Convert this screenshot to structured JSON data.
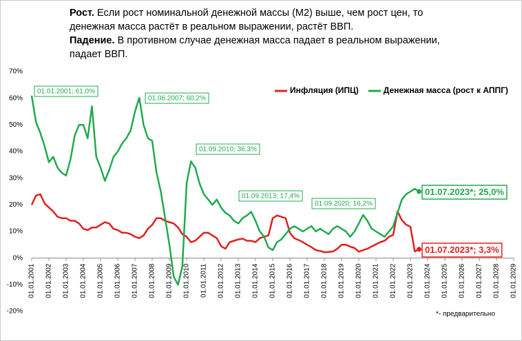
{
  "header": {
    "paragraphs": [
      {
        "lead": "Рост.",
        "text": "Если рост номинальной денежной массы (М2) выше, чем рост цен,  то денежная масса растёт в реальном выражении, растёт ВВП."
      },
      {
        "lead": "Падение.",
        "text": "В противном случае денежная масса падает в реальном выражении, падает ВВП."
      }
    ]
  },
  "chart_data": {
    "type": "line",
    "x": [
      "2001-01-01",
      "2001-04-01",
      "2001-07-01",
      "2001-10-01",
      "2002-01-01",
      "2002-04-01",
      "2002-07-01",
      "2002-10-01",
      "2003-01-01",
      "2003-04-01",
      "2003-07-01",
      "2003-10-01",
      "2004-01-01",
      "2004-04-01",
      "2004-07-01",
      "2004-10-01",
      "2005-01-01",
      "2005-04-01",
      "2005-07-01",
      "2005-10-01",
      "2006-01-01",
      "2006-04-01",
      "2006-07-01",
      "2006-10-01",
      "2007-01-01",
      "2007-04-01",
      "2007-07-01",
      "2007-10-01",
      "2008-01-01",
      "2008-04-01",
      "2008-07-01",
      "2008-10-01",
      "2009-01-01",
      "2009-04-01",
      "2009-07-01",
      "2009-10-01",
      "2010-01-01",
      "2010-04-01",
      "2010-07-01",
      "2010-10-01",
      "2011-01-01",
      "2011-04-01",
      "2011-07-01",
      "2011-10-01",
      "2012-01-01",
      "2012-04-01",
      "2012-07-01",
      "2012-10-01",
      "2013-01-01",
      "2013-04-01",
      "2013-07-01",
      "2013-10-01",
      "2014-01-01",
      "2014-04-01",
      "2014-07-01",
      "2014-10-01",
      "2015-01-01",
      "2015-04-01",
      "2015-07-01",
      "2015-10-01",
      "2016-01-01",
      "2016-04-01",
      "2016-07-01",
      "2016-10-01",
      "2017-01-01",
      "2017-04-01",
      "2017-07-01",
      "2017-10-01",
      "2018-01-01",
      "2018-04-01",
      "2018-07-01",
      "2018-10-01",
      "2019-01-01",
      "2019-04-01",
      "2019-07-01",
      "2019-10-01",
      "2020-01-01",
      "2020-04-01",
      "2020-07-01",
      "2020-10-01",
      "2021-01-01",
      "2021-04-01",
      "2021-07-01",
      "2021-10-01",
      "2022-01-01",
      "2022-04-01",
      "2022-07-01",
      "2022-10-01",
      "2023-01-01",
      "2023-04-01",
      "2023-07-01"
    ],
    "series": [
      {
        "name": "Инфляция (ИПЦ)",
        "color": "#e0201e",
        "values": [
          20,
          23.5,
          24,
          20.5,
          19,
          17.5,
          15.5,
          15,
          15,
          14,
          14,
          13,
          11,
          10.5,
          11.5,
          11.5,
          12.5,
          13.5,
          13,
          11,
          10.5,
          9.5,
          9.5,
          9,
          8,
          7.5,
          8.5,
          11,
          12.5,
          15,
          15,
          14,
          13.5,
          13,
          11.5,
          9,
          8,
          6,
          6.5,
          8,
          9.5,
          9.5,
          8.5,
          7.5,
          4.5,
          3.5,
          6,
          6.5,
          7,
          7.3,
          6.5,
          6.5,
          6,
          7.5,
          8,
          8.5,
          15,
          16,
          15.5,
          15,
          9.5,
          7.5,
          6.8,
          6,
          5,
          4.1,
          3,
          2.7,
          2.2,
          2.3,
          2.5,
          3.5,
          5,
          5,
          4.3,
          3.8,
          2.4,
          3,
          3.5,
          4.4,
          5.2,
          6,
          6.5,
          8,
          8.7,
          17.5,
          14.3,
          12.5,
          11.8,
          2.5,
          3.3
        ]
      },
      {
        "name": "Денежная масса (рост к АППГ)",
        "color": "#21a94e",
        "values": [
          61,
          51,
          47,
          42,
          36,
          38,
          34,
          32,
          31,
          37,
          46,
          50,
          50,
          45,
          57,
          38,
          34,
          29,
          33,
          38,
          40,
          43,
          45,
          48,
          55,
          60.2,
          50,
          45,
          44,
          32,
          25,
          15,
          5,
          -7,
          -10,
          -3,
          28,
          36.3,
          34,
          28,
          24,
          22,
          20,
          22,
          19,
          17,
          16,
          14,
          13,
          15,
          16,
          17.4,
          14,
          10,
          8,
          4,
          3,
          6,
          7,
          9,
          11,
          12,
          11,
          10,
          11,
          12,
          10,
          11,
          10,
          9,
          11,
          12,
          11,
          10,
          8,
          10,
          13,
          16.2,
          14,
          11,
          10,
          9,
          8,
          10,
          12,
          17,
          22,
          24,
          25,
          26,
          25
        ]
      }
    ],
    "annotations": [
      "01.01.2001; 61,0%",
      "01.06.2007; 60,2%",
      "01.09.2010; 36,3%",
      "01.09.2013; 17,4%",
      "01.09.2020; 16,2%",
      "01.07.2023*; 25,0%",
      "01.07.2023*; 3,3%"
    ],
    "footnote": "*- предварительно",
    "ylim": [
      -20,
      70
    ],
    "yticks": [
      {
        "value": -20,
        "label": "-20%"
      },
      {
        "value": -10,
        "label": "-10%"
      },
      {
        "value": 0,
        "label": "0%"
      },
      {
        "value": 10,
        "label": "10%"
      },
      {
        "value": 20,
        "label": "20%"
      },
      {
        "value": 30,
        "label": "30%"
      },
      {
        "value": 40,
        "label": "40%"
      },
      {
        "value": 50,
        "label": "50%"
      },
      {
        "value": 60,
        "label": "60%"
      },
      {
        "value": 70,
        "label": "70%"
      }
    ],
    "xlim": [
      "2001-01-01",
      "2029-01-01"
    ],
    "xticks": [
      {
        "value": "2001-01-01",
        "label": "01.01.2001"
      },
      {
        "value": "2002-01-01",
        "label": "01.01.2002"
      },
      {
        "value": "2003-01-01",
        "label": "01.01.2003"
      },
      {
        "value": "2004-01-01",
        "label": "01.01.2004"
      },
      {
        "value": "2005-01-01",
        "label": "01.01.2005"
      },
      {
        "value": "2006-01-01",
        "label": "01.01.2006"
      },
      {
        "value": "2007-01-01",
        "label": "01.01.2007"
      },
      {
        "value": "2008-01-01",
        "label": "01.01.2008"
      },
      {
        "value": "2009-01-01",
        "label": "01.01.2009"
      },
      {
        "value": "2010-01-01",
        "label": "01.01.2010"
      },
      {
        "value": "2011-01-01",
        "label": "01.01.2011"
      },
      {
        "value": "2012-01-01",
        "label": "01.01.2012"
      },
      {
        "value": "2013-01-01",
        "label": "01.01.2013"
      },
      {
        "value": "2014-01-01",
        "label": "01.01.2014"
      },
      {
        "value": "2015-01-01",
        "label": "01.01.2015"
      },
      {
        "value": "2016-01-01",
        "label": "01.01.2016"
      },
      {
        "value": "2017-01-01",
        "label": "01.01.2017"
      },
      {
        "value": "2018-01-01",
        "label": "01.01.2018"
      },
      {
        "value": "2019-01-01",
        "label": "01.01.2019"
      },
      {
        "value": "2020-01-01",
        "label": "01.01.2020"
      },
      {
        "value": "2021-01-01",
        "label": "01.01.2021"
      },
      {
        "value": "2022-01-01",
        "label": "01.01.2022"
      },
      {
        "value": "2023-01-01",
        "label": "01.01.2023"
      },
      {
        "value": "2024-01-01",
        "label": "01.01.2024"
      },
      {
        "value": "2025-01-01",
        "label": "01.01.2025"
      },
      {
        "value": "2026-01-01",
        "label": "01.01.2026"
      },
      {
        "value": "2027-01-01",
        "label": "01.01.2027"
      },
      {
        "value": "2028-01-01",
        "label": "01.01.2028"
      },
      {
        "value": "2029-01-01",
        "label": "01.01.2029"
      }
    ],
    "legend": "top-right",
    "grid": false
  }
}
